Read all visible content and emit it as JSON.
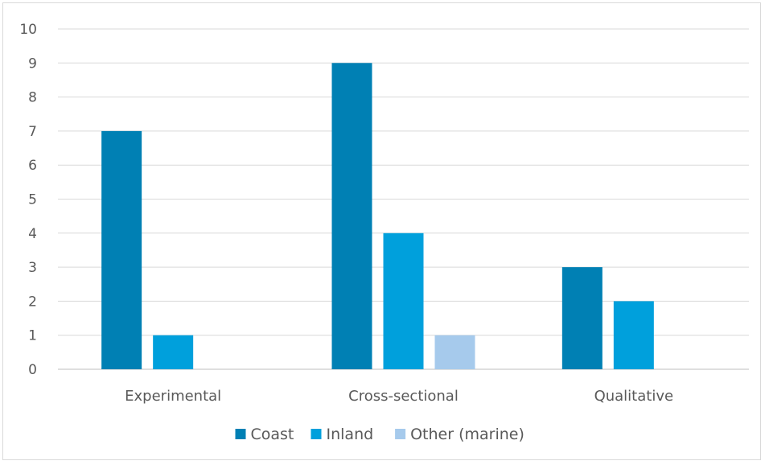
{
  "chart_data": {
    "type": "bar",
    "categories": [
      "Experimental",
      "Cross-sectional",
      "Qualitative"
    ],
    "series": [
      {
        "name": "Coast",
        "values": [
          7,
          9,
          3
        ],
        "color": "#0080B4"
      },
      {
        "name": "Inland",
        "values": [
          1,
          4,
          2
        ],
        "color": "#00A0DC"
      },
      {
        "name": "Other (marine)",
        "values": [
          0,
          1,
          0
        ],
        "color": "#A6CAEC"
      }
    ],
    "ylim": [
      0,
      10
    ],
    "y_ticks": [
      0,
      1,
      2,
      3,
      4,
      5,
      6,
      7,
      8,
      9,
      10
    ],
    "grid": true,
    "legend_position": "bottom"
  }
}
